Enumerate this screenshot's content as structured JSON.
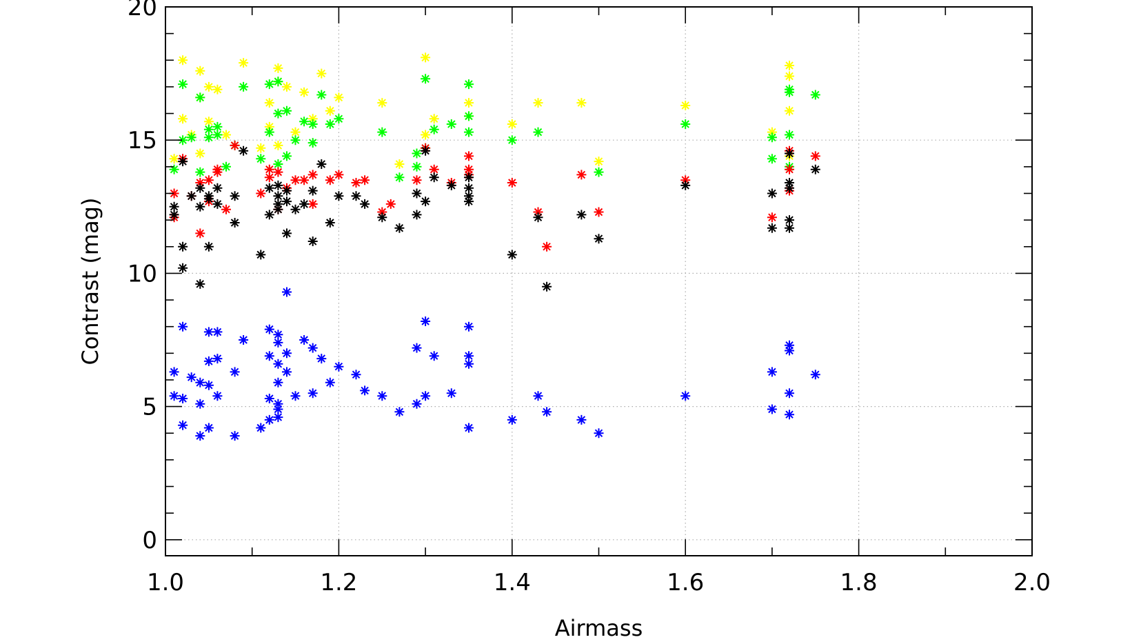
{
  "chart_data": {
    "type": "scatter",
    "xlabel": "Airmass",
    "ylabel": "Contrast (mag)",
    "xlim": [
      1.0,
      2.0
    ],
    "ylim": [
      -0.6,
      20.0
    ],
    "grid": true,
    "x_ticks": [
      1.0,
      1.2,
      1.4,
      1.6,
      1.8,
      2.0
    ],
    "x_tick_labels": [
      "1.0",
      "1.2",
      "1.4",
      "1.6",
      "1.8",
      "2.0"
    ],
    "y_ticks": [
      0,
      5,
      10,
      15,
      20
    ],
    "y_tick_labels": [
      "0",
      "5",
      "10",
      "15",
      "20"
    ],
    "series": [
      {
        "color": "#ffff00",
        "marker": "asterisk",
        "points": [
          [
            1.01,
            14.3
          ],
          [
            1.02,
            15.8
          ],
          [
            1.02,
            18.0
          ],
          [
            1.03,
            15.2
          ],
          [
            1.04,
            17.6
          ],
          [
            1.04,
            16.6
          ],
          [
            1.04,
            14.5
          ],
          [
            1.05,
            17.0
          ],
          [
            1.05,
            15.7
          ],
          [
            1.06,
            16.9
          ],
          [
            1.07,
            15.2
          ],
          [
            1.09,
            17.9
          ],
          [
            1.11,
            14.7
          ],
          [
            1.12,
            15.5
          ],
          [
            1.12,
            16.4
          ],
          [
            1.13,
            17.2
          ],
          [
            1.13,
            17.7
          ],
          [
            1.13,
            14.8
          ],
          [
            1.14,
            17.0
          ],
          [
            1.15,
            15.3
          ],
          [
            1.16,
            16.8
          ],
          [
            1.17,
            15.8
          ],
          [
            1.18,
            17.5
          ],
          [
            1.19,
            16.1
          ],
          [
            1.2,
            16.6
          ],
          [
            1.25,
            16.4
          ],
          [
            1.27,
            14.1
          ],
          [
            1.3,
            18.1
          ],
          [
            1.3,
            15.2
          ],
          [
            1.31,
            15.8
          ],
          [
            1.35,
            16.4
          ],
          [
            1.35,
            15.9
          ],
          [
            1.4,
            15.6
          ],
          [
            1.43,
            16.4
          ],
          [
            1.48,
            16.4
          ],
          [
            1.5,
            14.2
          ],
          [
            1.6,
            16.3
          ],
          [
            1.7,
            15.3
          ],
          [
            1.72,
            17.8
          ],
          [
            1.72,
            17.4
          ],
          [
            1.72,
            16.1
          ],
          [
            1.72,
            14.4
          ]
        ]
      },
      {
        "color": "#00ff00",
        "marker": "asterisk",
        "points": [
          [
            1.01,
            13.9
          ],
          [
            1.02,
            15.0
          ],
          [
            1.02,
            17.1
          ],
          [
            1.03,
            15.1
          ],
          [
            1.04,
            16.6
          ],
          [
            1.04,
            13.8
          ],
          [
            1.05,
            15.4
          ],
          [
            1.05,
            15.1
          ],
          [
            1.06,
            15.5
          ],
          [
            1.06,
            15.2
          ],
          [
            1.07,
            14.0
          ],
          [
            1.08,
            14.8
          ],
          [
            1.09,
            17.0
          ],
          [
            1.11,
            14.3
          ],
          [
            1.12,
            15.3
          ],
          [
            1.12,
            17.1
          ],
          [
            1.13,
            17.2
          ],
          [
            1.13,
            16.0
          ],
          [
            1.13,
            14.1
          ],
          [
            1.14,
            16.1
          ],
          [
            1.14,
            14.4
          ],
          [
            1.15,
            15.0
          ],
          [
            1.16,
            15.7
          ],
          [
            1.17,
            14.9
          ],
          [
            1.17,
            15.6
          ],
          [
            1.18,
            16.7
          ],
          [
            1.19,
            15.6
          ],
          [
            1.2,
            15.8
          ],
          [
            1.25,
            15.3
          ],
          [
            1.27,
            13.6
          ],
          [
            1.29,
            14.5
          ],
          [
            1.29,
            14.0
          ],
          [
            1.3,
            17.3
          ],
          [
            1.3,
            14.7
          ],
          [
            1.31,
            15.4
          ],
          [
            1.33,
            15.6
          ],
          [
            1.35,
            17.1
          ],
          [
            1.35,
            15.9
          ],
          [
            1.35,
            15.3
          ],
          [
            1.4,
            15.0
          ],
          [
            1.43,
            15.3
          ],
          [
            1.5,
            13.8
          ],
          [
            1.6,
            15.6
          ],
          [
            1.7,
            14.3
          ],
          [
            1.7,
            15.1
          ],
          [
            1.72,
            16.9
          ],
          [
            1.72,
            16.8
          ],
          [
            1.72,
            15.2
          ],
          [
            1.72,
            14.0
          ],
          [
            1.75,
            16.7
          ]
        ]
      },
      {
        "color": "#ff0000",
        "marker": "asterisk",
        "points": [
          [
            1.01,
            13.0
          ],
          [
            1.01,
            12.1
          ],
          [
            1.02,
            14.3
          ],
          [
            1.03,
            12.9
          ],
          [
            1.04,
            11.5
          ],
          [
            1.04,
            13.4
          ],
          [
            1.05,
            13.5
          ],
          [
            1.05,
            12.7
          ],
          [
            1.06,
            13.9
          ],
          [
            1.06,
            13.8
          ],
          [
            1.07,
            12.4
          ],
          [
            1.08,
            14.8
          ],
          [
            1.11,
            13.0
          ],
          [
            1.12,
            13.9
          ],
          [
            1.12,
            13.6
          ],
          [
            1.13,
            13.8
          ],
          [
            1.13,
            12.4
          ],
          [
            1.14,
            13.2
          ],
          [
            1.15,
            13.5
          ],
          [
            1.16,
            13.5
          ],
          [
            1.17,
            13.7
          ],
          [
            1.17,
            12.6
          ],
          [
            1.19,
            13.5
          ],
          [
            1.2,
            13.7
          ],
          [
            1.22,
            13.4
          ],
          [
            1.23,
            13.5
          ],
          [
            1.25,
            12.3
          ],
          [
            1.26,
            12.6
          ],
          [
            1.29,
            13.5
          ],
          [
            1.3,
            14.7
          ],
          [
            1.31,
            13.9
          ],
          [
            1.33,
            13.4
          ],
          [
            1.35,
            14.4
          ],
          [
            1.35,
            13.9
          ],
          [
            1.35,
            13.7
          ],
          [
            1.4,
            13.4
          ],
          [
            1.43,
            12.3
          ],
          [
            1.44,
            11.0
          ],
          [
            1.48,
            13.7
          ],
          [
            1.5,
            12.3
          ],
          [
            1.6,
            13.5
          ],
          [
            1.7,
            12.1
          ],
          [
            1.72,
            14.6
          ],
          [
            1.72,
            13.9
          ],
          [
            1.72,
            13.1
          ],
          [
            1.75,
            14.4
          ]
        ]
      },
      {
        "color": "#000000",
        "marker": "asterisk",
        "points": [
          [
            1.01,
            12.5
          ],
          [
            1.01,
            12.2
          ],
          [
            1.02,
            11.0
          ],
          [
            1.02,
            10.2
          ],
          [
            1.02,
            14.2
          ],
          [
            1.03,
            12.9
          ],
          [
            1.04,
            13.2
          ],
          [
            1.04,
            12.5
          ],
          [
            1.04,
            9.6
          ],
          [
            1.05,
            11.0
          ],
          [
            1.05,
            12.9
          ],
          [
            1.05,
            12.8
          ],
          [
            1.06,
            13.2
          ],
          [
            1.06,
            12.6
          ],
          [
            1.08,
            12.9
          ],
          [
            1.08,
            11.9
          ],
          [
            1.09,
            14.6
          ],
          [
            1.11,
            10.7
          ],
          [
            1.12,
            12.2
          ],
          [
            1.12,
            13.2
          ],
          [
            1.13,
            13.3
          ],
          [
            1.13,
            12.9
          ],
          [
            1.13,
            12.6
          ],
          [
            1.13,
            12.4
          ],
          [
            1.14,
            11.5
          ],
          [
            1.14,
            13.1
          ],
          [
            1.14,
            12.7
          ],
          [
            1.15,
            12.4
          ],
          [
            1.16,
            12.6
          ],
          [
            1.17,
            11.2
          ],
          [
            1.17,
            13.1
          ],
          [
            1.18,
            14.1
          ],
          [
            1.19,
            11.9
          ],
          [
            1.2,
            12.9
          ],
          [
            1.22,
            12.9
          ],
          [
            1.23,
            12.6
          ],
          [
            1.25,
            12.1
          ],
          [
            1.27,
            11.7
          ],
          [
            1.29,
            13.0
          ],
          [
            1.29,
            12.2
          ],
          [
            1.3,
            14.6
          ],
          [
            1.3,
            12.7
          ],
          [
            1.31,
            13.6
          ],
          [
            1.33,
            13.3
          ],
          [
            1.35,
            13.6
          ],
          [
            1.35,
            13.2
          ],
          [
            1.35,
            12.9
          ],
          [
            1.35,
            12.7
          ],
          [
            1.4,
            10.7
          ],
          [
            1.43,
            12.1
          ],
          [
            1.44,
            9.5
          ],
          [
            1.48,
            12.2
          ],
          [
            1.5,
            11.3
          ],
          [
            1.6,
            13.3
          ],
          [
            1.7,
            13.0
          ],
          [
            1.7,
            11.7
          ],
          [
            1.72,
            14.5
          ],
          [
            1.72,
            13.4
          ],
          [
            1.72,
            13.2
          ],
          [
            1.72,
            12.0
          ],
          [
            1.72,
            11.7
          ],
          [
            1.75,
            13.9
          ]
        ]
      },
      {
        "color": "#0000ff",
        "marker": "asterisk",
        "points": [
          [
            1.01,
            6.3
          ],
          [
            1.01,
            5.4
          ],
          [
            1.02,
            5.3
          ],
          [
            1.02,
            4.3
          ],
          [
            1.02,
            8.0
          ],
          [
            1.03,
            6.1
          ],
          [
            1.04,
            5.9
          ],
          [
            1.04,
            5.1
          ],
          [
            1.04,
            3.9
          ],
          [
            1.05,
            7.8
          ],
          [
            1.05,
            6.7
          ],
          [
            1.05,
            5.8
          ],
          [
            1.05,
            4.2
          ],
          [
            1.06,
            7.8
          ],
          [
            1.06,
            6.8
          ],
          [
            1.06,
            5.4
          ],
          [
            1.08,
            6.3
          ],
          [
            1.08,
            3.9
          ],
          [
            1.09,
            7.5
          ],
          [
            1.11,
            4.2
          ],
          [
            1.12,
            7.9
          ],
          [
            1.12,
            6.9
          ],
          [
            1.12,
            5.3
          ],
          [
            1.12,
            4.5
          ],
          [
            1.13,
            7.7
          ],
          [
            1.13,
            7.4
          ],
          [
            1.13,
            6.6
          ],
          [
            1.13,
            5.9
          ],
          [
            1.13,
            5.1
          ],
          [
            1.13,
            4.9
          ],
          [
            1.13,
            4.6
          ],
          [
            1.14,
            9.3
          ],
          [
            1.14,
            7.0
          ],
          [
            1.14,
            6.3
          ],
          [
            1.15,
            5.4
          ],
          [
            1.16,
            7.5
          ],
          [
            1.17,
            7.2
          ],
          [
            1.17,
            5.5
          ],
          [
            1.18,
            6.8
          ],
          [
            1.19,
            5.9
          ],
          [
            1.2,
            6.5
          ],
          [
            1.22,
            6.2
          ],
          [
            1.23,
            5.6
          ],
          [
            1.25,
            5.4
          ],
          [
            1.27,
            4.8
          ],
          [
            1.29,
            7.2
          ],
          [
            1.29,
            5.1
          ],
          [
            1.3,
            8.2
          ],
          [
            1.3,
            5.4
          ],
          [
            1.31,
            6.9
          ],
          [
            1.33,
            5.5
          ],
          [
            1.35,
            8.0
          ],
          [
            1.35,
            6.9
          ],
          [
            1.35,
            6.6
          ],
          [
            1.35,
            4.2
          ],
          [
            1.4,
            4.5
          ],
          [
            1.43,
            5.4
          ],
          [
            1.44,
            4.8
          ],
          [
            1.48,
            4.5
          ],
          [
            1.5,
            4.0
          ],
          [
            1.6,
            5.4
          ],
          [
            1.7,
            6.3
          ],
          [
            1.7,
            4.9
          ],
          [
            1.72,
            7.3
          ],
          [
            1.72,
            7.1
          ],
          [
            1.72,
            5.5
          ],
          [
            1.72,
            4.7
          ],
          [
            1.75,
            6.2
          ]
        ]
      }
    ]
  }
}
